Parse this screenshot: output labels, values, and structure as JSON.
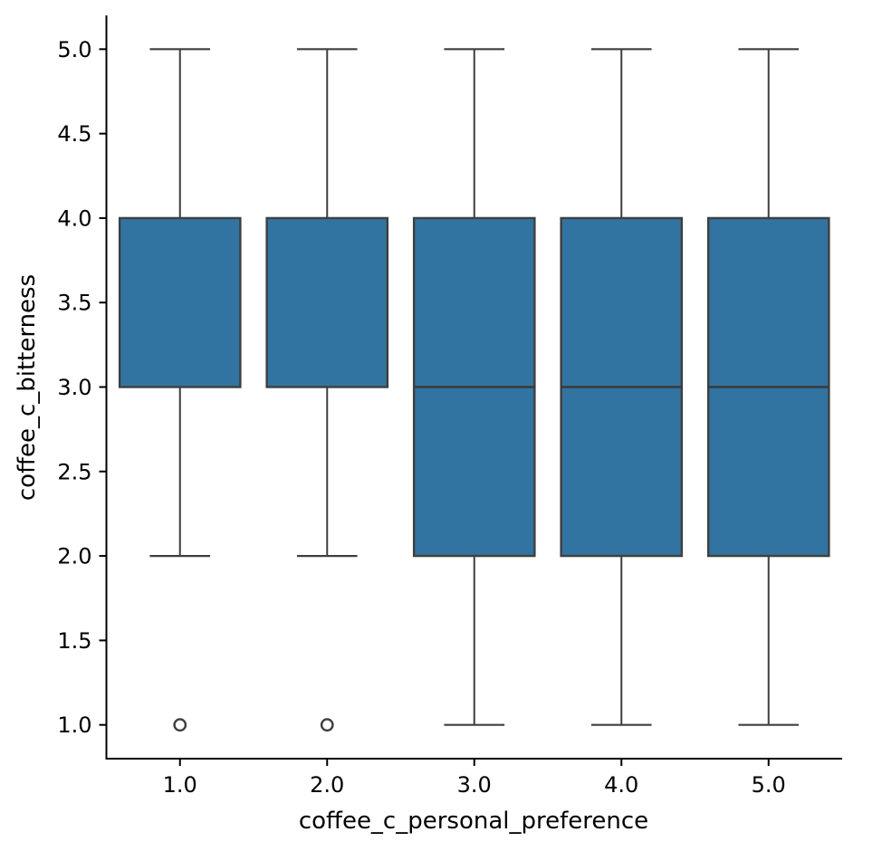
{
  "figure": {
    "background": "#ffffff"
  },
  "chart_data": {
    "type": "boxplot",
    "title": "",
    "xlabel": "coffee_c_personal_preference",
    "ylabel": "coffee_c_bitterness",
    "categories": [
      "1.0",
      "2.0",
      "3.0",
      "4.0",
      "5.0"
    ],
    "yticks": [
      "1.0",
      "1.5",
      "2.0",
      "2.5",
      "3.0",
      "3.5",
      "4.0",
      "4.5",
      "5.0"
    ],
    "ylim": [
      0.8,
      5.2
    ],
    "grid": false,
    "legend": null,
    "boxes": [
      {
        "category": "1.0",
        "whisker_low": 2.0,
        "q1": 3.0,
        "median": null,
        "q3": 4.0,
        "whisker_high": 5.0,
        "outliers": [
          1.0
        ]
      },
      {
        "category": "2.0",
        "whisker_low": 2.0,
        "q1": 3.0,
        "median": null,
        "q3": 4.0,
        "whisker_high": 5.0,
        "outliers": [
          1.0
        ]
      },
      {
        "category": "3.0",
        "whisker_low": 1.0,
        "q1": 2.0,
        "median": 3.0,
        "q3": 4.0,
        "whisker_high": 5.0,
        "outliers": []
      },
      {
        "category": "4.0",
        "whisker_low": 1.0,
        "q1": 2.0,
        "median": 3.0,
        "q3": 4.0,
        "whisker_high": 5.0,
        "outliers": []
      },
      {
        "category": "5.0",
        "whisker_low": 1.0,
        "q1": 2.0,
        "median": 3.0,
        "q3": 4.0,
        "whisker_high": 5.0,
        "outliers": []
      }
    ],
    "colors": {
      "box_fill": "#3274a1",
      "box_edge": "#3f3f3f",
      "whisker": "#3f3f3f",
      "median": "#3a3a3a",
      "outlier_edge": "#3f3f3f",
      "axis": "#000000",
      "text": "#000000"
    }
  }
}
